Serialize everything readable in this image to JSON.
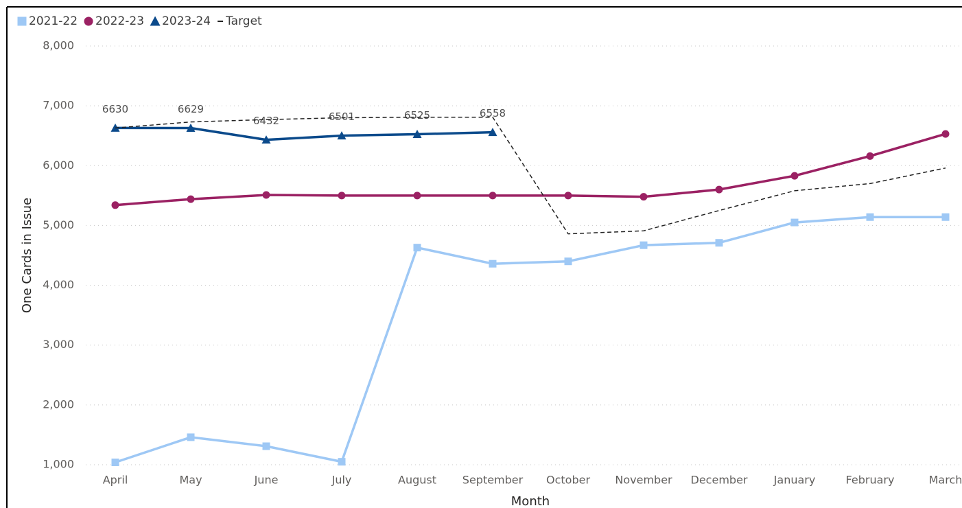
{
  "chart_data": {
    "type": "line",
    "x_label": "Month",
    "y_label": "One Cards in Issue",
    "categories": [
      "April",
      "May",
      "June",
      "July",
      "August",
      "September",
      "October",
      "November",
      "December",
      "January",
      "February",
      "March"
    ],
    "series": [
      {
        "name": "2021-22",
        "color": "#9ec8f5",
        "marker": "square",
        "dashed": false,
        "data_labels": false,
        "values": [
          1040,
          1460,
          1310,
          1050,
          4630,
          4360,
          4400,
          4670,
          4710,
          5050,
          5140,
          5140
        ]
      },
      {
        "name": "2022-23",
        "color": "#9b2163",
        "marker": "circle",
        "dashed": false,
        "data_labels": false,
        "values": [
          5340,
          5440,
          5510,
          5500,
          5500,
          5500,
          5500,
          5480,
          5600,
          5830,
          6160,
          6530
        ]
      },
      {
        "name": "2023-24",
        "color": "#0b4a8b",
        "marker": "triangle",
        "dashed": false,
        "data_labels": true,
        "values": [
          6630,
          6629,
          6432,
          6501,
          6525,
          6558,
          null,
          null,
          null,
          null,
          null,
          null
        ]
      },
      {
        "name": "Target",
        "color": "#222222",
        "marker": "none",
        "dashed": true,
        "data_labels": false,
        "values": [
          6630,
          6730,
          6770,
          6800,
          6810,
          6810,
          4860,
          4910,
          5250,
          5580,
          5700,
          5960
        ]
      }
    ],
    "ylim": [
      1000,
      8000
    ],
    "yticks": [
      {
        "value": 1000,
        "label": "1,000"
      },
      {
        "value": 2000,
        "label": "2,000"
      },
      {
        "value": 3000,
        "label": "3,000"
      },
      {
        "value": 4000,
        "label": "4,000"
      },
      {
        "value": 5000,
        "label": "5,000"
      },
      {
        "value": 6000,
        "label": "6,000"
      },
      {
        "value": 7000,
        "label": "7,000"
      },
      {
        "value": 8000,
        "label": "8,000"
      }
    ],
    "grid": true,
    "legend_position": "top-left"
  }
}
